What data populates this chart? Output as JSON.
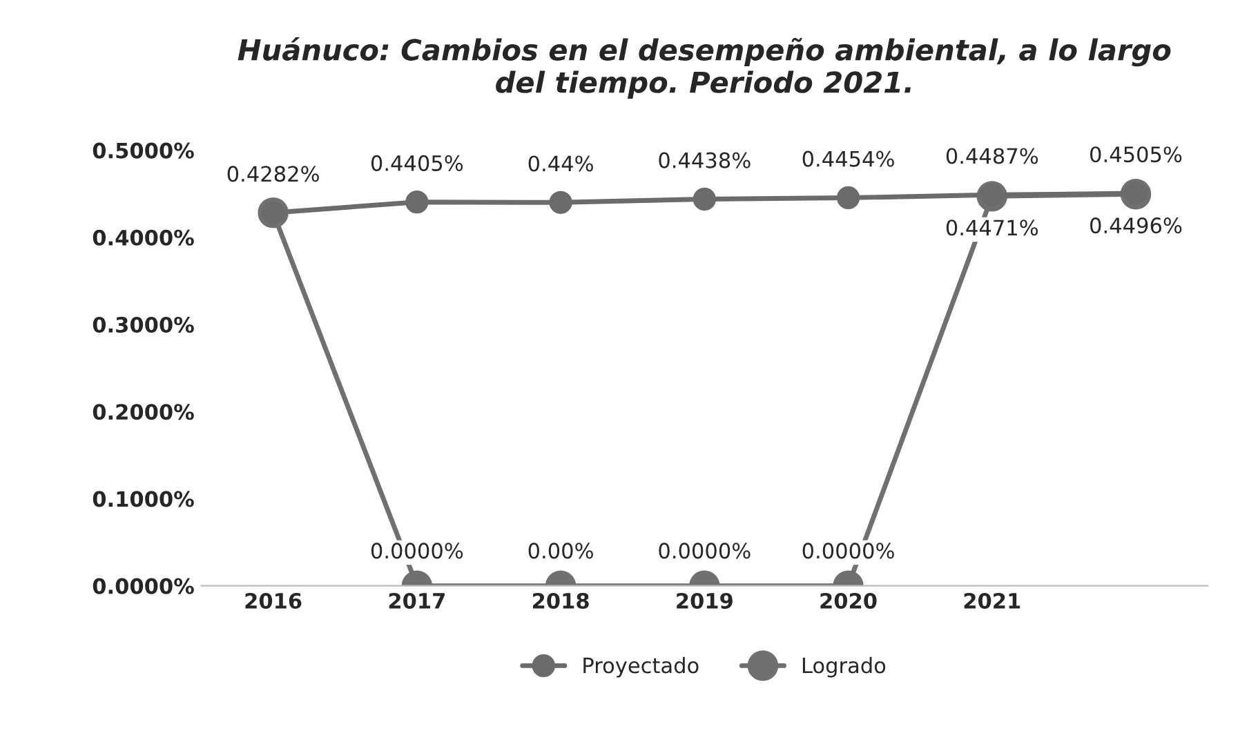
{
  "chart_data": {
    "type": "line",
    "title": "Huánuco: Cambios en el desempeño ambiental, a lo largo\ndel tiempo. Periodo 2021.",
    "categories": [
      "2016",
      "2017",
      "2018",
      "2019",
      "2020",
      "2021",
      null
    ],
    "series": [
      {
        "name": "Proyectado",
        "color": "#6b6b6b",
        "values": [
          0.4282,
          0.4405,
          0.44,
          0.4438,
          0.4454,
          0.4487,
          0.4505
        ],
        "value_labels": [
          "0.4282%",
          "0.4405%",
          "0.44%",
          "0.4438%",
          "0.4454%",
          "0.4487%",
          "0.4505%"
        ]
      },
      {
        "name": "Logrado",
        "color": "#707070",
        "values": [
          0.4282,
          0,
          0,
          0,
          0,
          0.4471,
          0.4496
        ],
        "value_labels": [
          null,
          "0.0000%",
          "0.00%",
          "0.0000%",
          "0.0000%",
          "0.4471%",
          "0.4496%"
        ]
      }
    ],
    "ylim": [
      0,
      0.5
    ],
    "yticks": [
      {
        "value": 0,
        "label": "0.0000%"
      },
      {
        "value": 0.1,
        "label": "0.1000%"
      },
      {
        "value": 0.2,
        "label": "0.2000%"
      },
      {
        "value": 0.3,
        "label": "0.3000%"
      },
      {
        "value": 0.4,
        "label": "0.4000%"
      },
      {
        "value": 0.5,
        "label": "0.5000%"
      }
    ],
    "grid": false,
    "legend": "bottom",
    "marker": "circle",
    "line_style": "solid"
  }
}
